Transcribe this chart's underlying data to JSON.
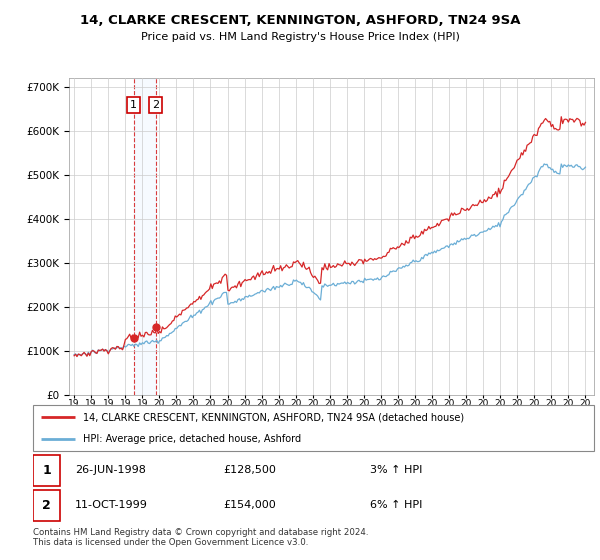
{
  "title": "14, CLARKE CRESCENT, KENNINGTON, ASHFORD, TN24 9SA",
  "subtitle": "Price paid vs. HM Land Registry's House Price Index (HPI)",
  "legend_line1": "14, CLARKE CRESCENT, KENNINGTON, ASHFORD, TN24 9SA (detached house)",
  "legend_line2": "HPI: Average price, detached house, Ashford",
  "transaction1_date": "26-JUN-1998",
  "transaction1_price": "£128,500",
  "transaction1_hpi": "3% ↑ HPI",
  "transaction2_date": "11-OCT-1999",
  "transaction2_price": "£154,000",
  "transaction2_hpi": "6% ↑ HPI",
  "footnote": "Contains HM Land Registry data © Crown copyright and database right 2024.\nThis data is licensed under the Open Government Licence v3.0.",
  "vline1_x": 1998.5,
  "vline2_x": 1999.79,
  "point1_x": 1998.5,
  "point1_y": 128500,
  "point2_x": 1999.79,
  "point2_y": 154000,
  "hpi_color": "#6baed6",
  "price_color": "#d62728",
  "vline_color": "#d62728",
  "shade_color": "#ddeeff",
  "background_color": "#ffffff",
  "grid_color": "#cccccc",
  "ylim": [
    0,
    720000
  ],
  "xlim": [
    1994.7,
    2025.5
  ],
  "yticks": [
    0,
    100000,
    200000,
    300000,
    400000,
    500000,
    600000,
    700000
  ],
  "xticks": [
    1995,
    1996,
    1997,
    1998,
    1999,
    2000,
    2001,
    2002,
    2003,
    2004,
    2005,
    2006,
    2007,
    2008,
    2009,
    2010,
    2011,
    2012,
    2013,
    2014,
    2015,
    2016,
    2017,
    2018,
    2019,
    2020,
    2021,
    2022,
    2023,
    2024,
    2025
  ]
}
